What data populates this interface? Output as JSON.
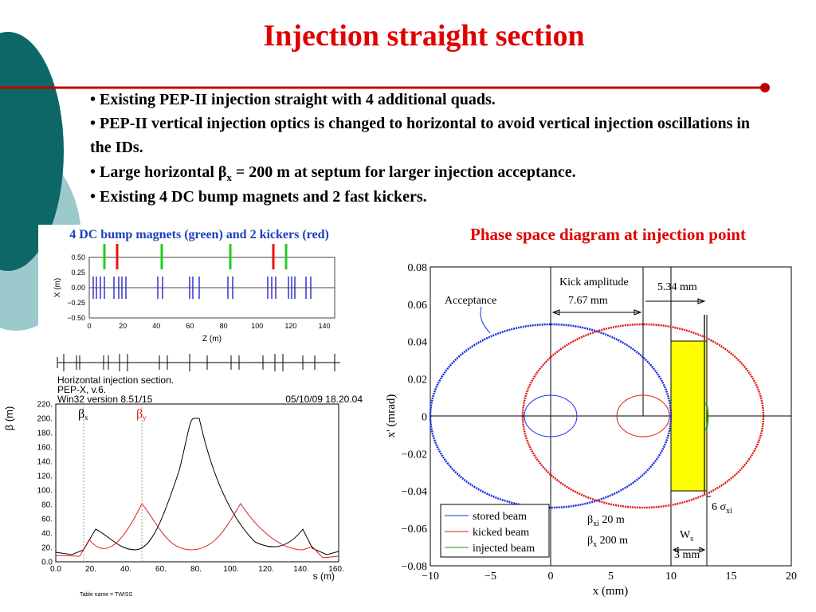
{
  "title": "Injection straight section",
  "bullets": [
    {
      "text": "• Existing PEP-II injection straight with 4 additional quads."
    },
    {
      "text": "• PEP-II vertical injection optics is changed to horizontal to avoid vertical injection oscillations in the IDs."
    },
    {
      "pre": "• Large horizontal β",
      "sub": "x",
      "post": " = 200 m at septum for larger injection acceptance."
    },
    {
      "text": "• Existing 4 DC bump magnets and 2 fast kickers."
    }
  ],
  "left_figure": {
    "caption": "4 DC bump magnets (green) and 2 kickers (red)",
    "orbit_plot": {
      "ylabel": "X (m)",
      "xlabel": "Z (m)",
      "yticks": [
        "0.50",
        "0.25",
        "0.00",
        "−0.25",
        "−0.50"
      ],
      "xticks": [
        "0",
        "20",
        "40",
        "60",
        "80",
        "100",
        "120",
        "140"
      ]
    },
    "info": [
      "Horizontal injection section.",
      "PEP-X, v.6.",
      "Win32 version 8.51/15"
    ],
    "date": "05/10/09  18.20.04",
    "beta_plot": {
      "ylabel": "β (m)",
      "xlabel": "s (m)",
      "beta_x": "β",
      "beta_x_sub": "x",
      "beta_y": "β",
      "beta_y_sub": "y",
      "yticks": [
        "220.",
        "200.",
        "180.",
        "160.",
        "140.",
        "120.",
        "100.",
        "80.",
        "60.",
        "40.",
        "20.",
        "0.0"
      ],
      "xticks": [
        "0.0",
        "20.",
        "40.",
        "60.",
        "80.",
        "100.",
        "120.",
        "140.",
        "160."
      ]
    },
    "footer": "Table name = TWISS"
  },
  "right_figure": {
    "caption": "Phase space diagram at injection point",
    "xlabel": "x (mm)",
    "ylabel": "x' (mrad)",
    "yticks": [
      "0.08",
      "0.06",
      "0.04",
      "0.02",
      "0",
      "−0.02",
      "−0.04",
      "−0.06",
      "−0.08"
    ],
    "xticks": [
      "−10",
      "−5",
      "0",
      "5",
      "10",
      "15",
      "20"
    ],
    "annotations": {
      "acceptance": "Acceptance",
      "kick": "Kick amplitude",
      "kick_value": "7.67 mm",
      "gap": "5.34 mm",
      "beta_xi": "β",
      "beta_xi_sub": "xi",
      "beta_xi_value": " 20 m",
      "beta_x": "β",
      "beta_x_sub": "x",
      "beta_x_value": " 200 m",
      "sigma": "6 σ",
      "sigma_sub": "xi",
      "ws": "W",
      "ws_sub": "s",
      "ws_value": "3 mm"
    },
    "legend": [
      "stored beam",
      "kicked beam",
      "injected beam"
    ]
  }
}
